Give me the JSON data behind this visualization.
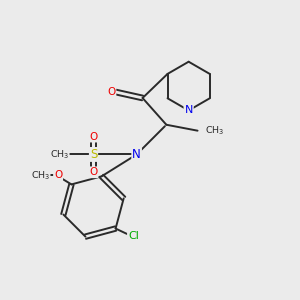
{
  "background_color": "#ebebeb",
  "bond_color": "#2a2a2a",
  "atom_colors": {
    "N": "#0000ee",
    "O": "#ee0000",
    "S": "#bbbb00",
    "Cl": "#00aa00",
    "C": "#2a2a2a"
  },
  "figsize": [
    3.0,
    3.0
  ],
  "dpi": 100
}
